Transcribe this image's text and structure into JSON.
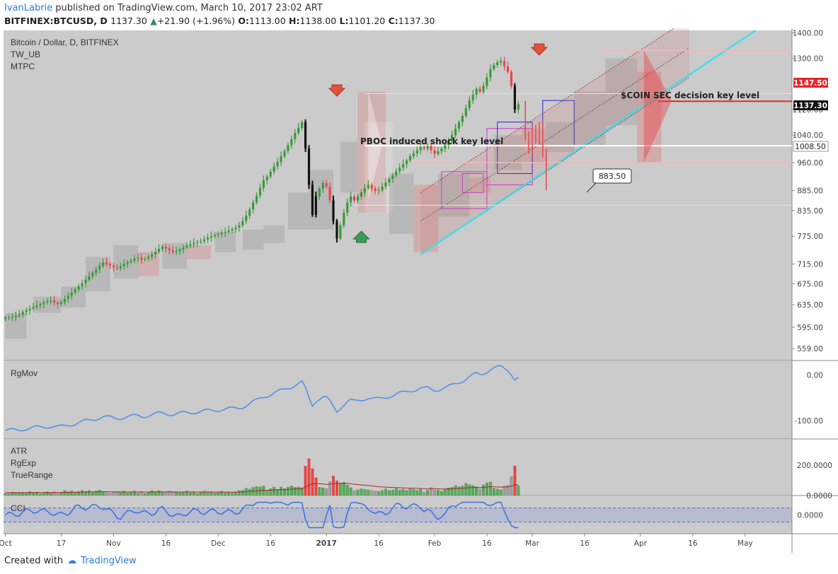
{
  "header": {
    "author": "IvanLabrie",
    "published_text": "published on TradingView.com, March 10, 2017 23:02 ART",
    "symbol": "BITFINEX:BTCUSD, D",
    "last": "1137.30",
    "change": "+21.90 (+1.96%)",
    "o_label": "O:",
    "o": "1113.00",
    "h_label": "H:",
    "h": "1138.00",
    "l_label": "L:",
    "l": "1101.20",
    "c_label": "C:",
    "c": "1137.30"
  },
  "footer": {
    "created_with": "Created with",
    "brand": "TradingView"
  },
  "legend": {
    "title": "Bitcoin / Dollar, D, BITFINEX",
    "ind1": "TW_UB",
    "ind2": "MTPC"
  },
  "annotations": {
    "pboc": "PBOC induced shock key level",
    "coin": "$COIN SEC decision key level",
    "target": "883.50"
  },
  "price_tags": {
    "red": "1147.50",
    "black": "1137.30",
    "white": "1008.50"
  },
  "panes": {
    "rgmov": {
      "label": "RgMov"
    },
    "atr": {
      "labels": [
        "ATR",
        "RgExp",
        "TrueRange"
      ]
    },
    "cci": {
      "label": "CCI"
    }
  },
  "colors": {
    "up": "#3a9a3a",
    "down": "#e8464b",
    "channel_line": "#33e0f0",
    "accent_blue": "#2b7bd6"
  },
  "chart_data": [
    {
      "type": "candlestick",
      "title": "Bitcoin / Dollar, D, BITFINEX",
      "x_ticks": [
        "Oct",
        "17",
        "Nov",
        "16",
        "Dec",
        "16",
        "2017",
        "16",
        "Feb",
        "16",
        "Mar",
        "16",
        "Apr",
        "16",
        "May"
      ],
      "y_ticks": [
        "1400.00",
        "1300.00",
        "1120.00",
        "1040.00",
        "960.00",
        "885.00",
        "835.00",
        "775.00",
        "715.00",
        "675.00",
        "635.00",
        "595.00",
        "559.00"
      ],
      "ylim": [
        540,
        1410
      ],
      "x_start": "2016-10-01",
      "close": [
        612,
        612,
        613,
        615,
        617,
        622,
        625,
        628,
        631,
        634,
        636,
        639,
        641,
        643,
        639,
        636,
        640,
        646,
        652,
        658,
        664,
        670,
        676,
        683,
        690,
        697,
        704,
        711,
        718,
        715,
        712,
        708,
        706,
        710,
        715,
        719,
        722,
        726,
        728,
        724,
        726,
        730,
        735,
        741,
        747,
        752,
        748,
        744,
        740,
        742,
        746,
        750,
        754,
        757,
        760,
        762,
        764,
        768,
        772,
        775,
        778,
        780,
        783,
        785,
        788,
        791,
        795,
        800,
        810,
        823,
        838,
        855,
        872,
        892,
        912,
        922,
        935,
        950,
        962,
        978,
        993,
        1010,
        1028,
        1046,
        1062,
        1080,
        1000,
        900,
        825,
        870,
        890,
        905,
        895,
        860,
        810,
        770,
        800,
        830,
        855,
        870,
        860,
        870,
        880,
        892,
        900,
        890,
        884,
        886,
        895,
        906,
        916,
        925,
        936,
        946,
        956,
        966,
        978,
        986,
        995,
        1005,
        1000,
        1008,
        995,
        985,
        992,
        1000,
        1010,
        1022,
        1040,
        1060,
        1080,
        1100,
        1125,
        1150,
        1170,
        1190,
        1180,
        1200,
        1230,
        1260,
        1275,
        1285,
        1290,
        1270,
        1250,
        1200,
        1120,
        1137.3
      ],
      "forecast": [
        1040,
        1000,
        1060,
        1030,
        1070,
        990,
        900
      ],
      "horizontal_levels": [
        {
          "price": 1147.5,
          "label": "$COIN SEC decision key level",
          "color": "#e8262b"
        },
        {
          "price": 1008.5,
          "label": "PBOC induced shock key level",
          "color": "#ffffff"
        }
      ],
      "arrows": [
        {
          "date": "2017-01-04",
          "direction": "down"
        },
        {
          "date": "2017-01-11",
          "direction": "up"
        },
        {
          "date": "2017-03-03",
          "direction": "down"
        }
      ]
    },
    {
      "type": "line",
      "title": "RgMov",
      "y_ticks": [
        "0.00",
        "-100.00"
      ],
      "ylim": [
        -140,
        30
      ]
    },
    {
      "type": "bar",
      "title": "ATR / RgExp / TrueRange",
      "y_ticks": [
        "200.0000",
        "0.0000"
      ],
      "ylim": [
        0,
        340
      ]
    },
    {
      "type": "line",
      "title": "CCI",
      "y_ticks": [
        "0.0000"
      ],
      "bands": [
        100,
        -100
      ]
    }
  ]
}
